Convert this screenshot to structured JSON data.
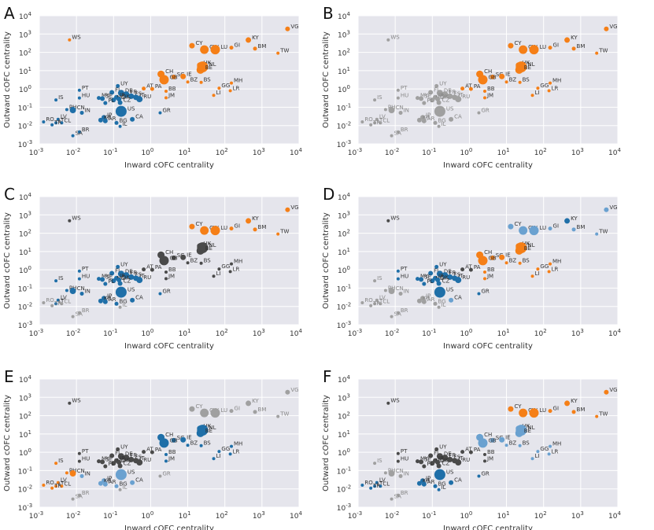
{
  "colors": {
    "orange": "#f57f17",
    "blue": "#1f6fa8",
    "light_blue": "#6aa1d0",
    "dark_gray": "#4a4a4a",
    "light_gray": "#a0a0a0"
  },
  "chart_data": {
    "type": "scatter",
    "xlabel": "Inward cOFC centrality",
    "ylabel": "Outward cOFC centrality",
    "xscale": "log",
    "yscale": "log",
    "xlim": [
      0.001,
      10000
    ],
    "ylim": [
      0.001,
      10000
    ],
    "x_ticks": [
      {
        "base": "10",
        "exp": "-3"
      },
      {
        "base": "10",
        "exp": "-2"
      },
      {
        "base": "10",
        "exp": "-1"
      },
      {
        "base": "10",
        "exp": "0"
      },
      {
        "base": "10",
        "exp": "1"
      },
      {
        "base": "10",
        "exp": "2"
      },
      {
        "base": "10",
        "exp": "3"
      },
      {
        "base": "10",
        "exp": "4"
      }
    ],
    "y_ticks": [
      {
        "base": "10",
        "exp": "-3"
      },
      {
        "base": "10",
        "exp": "-2"
      },
      {
        "base": "10",
        "exp": "-1"
      },
      {
        "base": "10",
        "exp": "0"
      },
      {
        "base": "10",
        "exp": "1"
      },
      {
        "base": "10",
        "exp": "2"
      },
      {
        "base": "10",
        "exp": "3"
      },
      {
        "base": "10",
        "exp": "4"
      }
    ],
    "points": [
      {
        "id": "VG",
        "x": 4900,
        "y": 1900,
        "s": 3.0
      },
      {
        "id": "KY",
        "x": 430,
        "y": 470,
        "s": 3.5
      },
      {
        "id": "CY",
        "x": 13,
        "y": 230,
        "s": 3.5
      },
      {
        "id": "GI",
        "x": 150,
        "y": 180,
        "s": 2.5
      },
      {
        "id": "BM",
        "x": 650,
        "y": 160,
        "s": 2.5
      },
      {
        "id": "CW",
        "x": 28,
        "y": 140,
        "s": 5.5
      },
      {
        "id": "LU",
        "x": 55,
        "y": 140,
        "s": 6.0
      },
      {
        "id": "TW",
        "x": 2700,
        "y": 90,
        "s": 2.0
      },
      {
        "id": "WS",
        "x": 0.0065,
        "y": 480,
        "s": 2.0
      },
      {
        "id": "CH",
        "x": 1.9,
        "y": 6.5,
        "s": 4.5
      },
      {
        "id": "SG",
        "x": 4.2,
        "y": 4.5,
        "s": 3.0
      },
      {
        "id": "IE",
        "x": 7.5,
        "y": 4.8,
        "s": 3.5
      },
      {
        "id": "GB",
        "x": 2.3,
        "y": 3.2,
        "s": 6.0
      },
      {
        "id": "HK",
        "x": 21,
        "y": 20,
        "s": 3.5
      },
      {
        "id": "NL",
        "x": 25,
        "y": 16,
        "s": 7.0
      },
      {
        "id": "BE",
        "x": 22,
        "y": 11,
        "s": 5.0
      },
      {
        "id": "BZ",
        "x": 10,
        "y": 2.4,
        "s": 2.0
      },
      {
        "id": "BS",
        "x": 23,
        "y": 2.3,
        "s": 2.0
      },
      {
        "id": "MH",
        "x": 150,
        "y": 2.1,
        "s": 2.0
      },
      {
        "id": "GG",
        "x": 70,
        "y": 1.1,
        "s": 2.0
      },
      {
        "id": "LR",
        "x": 140,
        "y": 0.8,
        "s": 2.0
      },
      {
        "id": "LI",
        "x": 50,
        "y": 0.45,
        "s": 2.0
      },
      {
        "id": "AT",
        "x": 0.65,
        "y": 1.05,
        "s": 2.5
      },
      {
        "id": "PA",
        "x": 1.1,
        "y": 1.0,
        "s": 2.5
      },
      {
        "id": "BB",
        "x": 2.6,
        "y": 0.75,
        "s": 2.0
      },
      {
        "id": "JM",
        "x": 2.6,
        "y": 0.33,
        "s": 2.0
      },
      {
        "id": "UY",
        "x": 0.13,
        "y": 1.45,
        "s": 2.5
      },
      {
        "id": "FI",
        "x": 0.09,
        "y": 0.65,
        "s": 3.0
      },
      {
        "id": "DE",
        "x": 0.16,
        "y": 0.6,
        "s": 4.0
      },
      {
        "id": "FR",
        "x": 0.22,
        "y": 0.5,
        "s": 4.0
      },
      {
        "id": "ES",
        "x": 0.3,
        "y": 0.4,
        "s": 3.5
      },
      {
        "id": "IT",
        "x": 0.4,
        "y": 0.35,
        "s": 3.5
      },
      {
        "id": "JP",
        "x": 0.12,
        "y": 0.35,
        "s": 3.0
      },
      {
        "id": "RU",
        "x": 0.5,
        "y": 0.28,
        "s": 4.0
      },
      {
        "id": "MY",
        "x": 0.04,
        "y": 0.32,
        "s": 2.5
      },
      {
        "id": "SE",
        "x": 0.05,
        "y": 0.3,
        "s": 3.0
      },
      {
        "id": "NO",
        "x": 0.1,
        "y": 0.25,
        "s": 3.0
      },
      {
        "id": "DK",
        "x": 0.14,
        "y": 0.28,
        "s": 3.0
      },
      {
        "id": "PL",
        "x": 0.06,
        "y": 0.17,
        "s": 2.5
      },
      {
        "id": "PT",
        "x": 0.012,
        "y": 0.85,
        "s": 2.0
      },
      {
        "id": "HU",
        "x": 0.012,
        "y": 0.32,
        "s": 2.0
      },
      {
        "id": "CZ",
        "x": 0.15,
        "y": 0.18,
        "s": 3.0
      },
      {
        "id": "US",
        "x": 0.16,
        "y": 0.06,
        "s": 7.0
      },
      {
        "id": "IS",
        "x": 0.0028,
        "y": 0.25,
        "s": 2.0
      },
      {
        "id": "PH",
        "x": 0.0055,
        "y": 0.075,
        "s": 2.0
      },
      {
        "id": "CN",
        "x": 0.008,
        "y": 0.07,
        "s": 4.0
      },
      {
        "id": "IN",
        "x": 0.014,
        "y": 0.05,
        "s": 2.5
      },
      {
        "id": "CA",
        "x": 0.32,
        "y": 0.022,
        "s": 3.0
      },
      {
        "id": "LV",
        "x": 0.0032,
        "y": 0.022,
        "s": 2.0
      },
      {
        "id": "RO",
        "x": 0.0013,
        "y": 0.016,
        "s": 2.0
      },
      {
        "id": "LT",
        "x": 0.0028,
        "y": 0.014,
        "s": 2.0
      },
      {
        "id": "CL",
        "x": 0.004,
        "y": 0.014,
        "s": 2.0
      },
      {
        "id": "TR",
        "x": 0.0022,
        "y": 0.011,
        "s": 2.0
      },
      {
        "id": "JP2",
        "x": 0.055,
        "y": 0.028,
        "s": 3.0
      },
      {
        "id": "KR",
        "x": 0.045,
        "y": 0.02,
        "s": 3.0
      },
      {
        "id": "AR",
        "x": 0.06,
        "y": 0.018,
        "s": 3.0
      },
      {
        "id": "BG",
        "x": 0.12,
        "y": 0.014,
        "s": 2.5
      },
      {
        "id": "IL",
        "x": 0.15,
        "y": 0.009,
        "s": 2.0
      },
      {
        "id": "BR",
        "x": 0.012,
        "y": 0.0045,
        "s": 2.0
      },
      {
        "id": "SA",
        "x": 0.008,
        "y": 0.0028,
        "s": 2.0
      },
      {
        "id": "GR",
        "x": 1.8,
        "y": 0.05,
        "s": 2.0
      }
    ],
    "panels": [
      {
        "letter": "A",
        "default_color": "blue",
        "color_map": {
          "VG": "orange",
          "KY": "orange",
          "CY": "orange",
          "GI": "orange",
          "BM": "orange",
          "CW": "orange",
          "LU": "orange",
          "TW": "orange",
          "WS": "orange",
          "CH": "orange",
          "SG": "orange",
          "IE": "orange",
          "GB": "orange",
          "HK": "orange",
          "NL": "orange",
          "BE": "orange",
          "BZ": "orange",
          "BS": "orange",
          "MH": "orange",
          "GG": "orange",
          "LR": "orange",
          "LI": "orange",
          "AT": "orange",
          "PA": "orange",
          "BB": "orange",
          "JM": "orange"
        }
      },
      {
        "letter": "B",
        "default_color": "light_gray",
        "color_map": {
          "VG": "orange",
          "KY": "orange",
          "CY": "orange",
          "GI": "orange",
          "BM": "orange",
          "CW": "orange",
          "LU": "orange",
          "TW": "orange",
          "CH": "orange",
          "SG": "orange",
          "IE": "orange",
          "GB": "orange",
          "HK": "orange",
          "NL": "orange",
          "BE": "orange",
          "BZ": "orange",
          "BS": "orange",
          "MH": "orange",
          "GG": "orange",
          "LR": "orange",
          "LI": "orange",
          "AT": "orange",
          "PA": "orange",
          "BB": "orange",
          "JM": "orange",
          "US": "light_gray",
          "GR": "light_gray"
        }
      },
      {
        "letter": "C",
        "default_color": "blue",
        "color_map": {
          "VG": "orange",
          "KY": "orange",
          "CY": "orange",
          "GI": "orange",
          "BM": "orange",
          "CW": "orange",
          "LU": "orange",
          "TW": "orange",
          "WS": "dark_gray",
          "CH": "dark_gray",
          "SG": "dark_gray",
          "IE": "dark_gray",
          "GB": "dark_gray",
          "HK": "dark_gray",
          "NL": "dark_gray",
          "BE": "dark_gray",
          "BZ": "dark_gray",
          "BS": "dark_gray",
          "MH": "dark_gray",
          "GG": "dark_gray",
          "LR": "dark_gray",
          "LI": "dark_gray",
          "AT": "dark_gray",
          "PA": "dark_gray",
          "BB": "dark_gray",
          "JM": "dark_gray",
          "RO": "light_gray",
          "TR": "light_gray",
          "CL": "light_gray",
          "BR": "light_gray",
          "SA": "light_gray",
          "IL": "light_gray",
          "GR": "blue"
        }
      },
      {
        "letter": "D",
        "default_color": "blue",
        "color_map": {
          "VG": "light_blue",
          "KY": "blue",
          "CY": "light_blue",
          "GI": "light_blue",
          "BM": "light_blue",
          "CW": "light_blue",
          "LU": "light_blue",
          "TW": "light_blue",
          "WS": "dark_gray",
          "CH": "orange",
          "SG": "orange",
          "IE": "orange",
          "GB": "orange",
          "HK": "orange",
          "NL": "orange",
          "BE": "orange",
          "BZ": "orange",
          "BS": "orange",
          "MH": "orange",
          "GG": "orange",
          "LR": "orange",
          "LI": "orange",
          "AT": "dark_gray",
          "PA": "dark_gray",
          "BB": "orange",
          "JM": "orange",
          "IS": "light_gray",
          "PH": "light_gray",
          "CN": "light_gray",
          "IN": "light_gray",
          "RO": "light_gray",
          "TR": "light_gray",
          "CL": "light_gray",
          "LT": "light_gray",
          "LV": "light_gray",
          "BR": "light_gray",
          "SA": "light_gray",
          "IL": "light_gray",
          "JP2": "light_gray",
          "KR": "light_gray",
          "AR": "light_gray",
          "BG": "light_gray",
          "US": "blue",
          "CA": "light_blue"
        }
      },
      {
        "letter": "E",
        "default_color": "dark_gray",
        "color_map": {
          "VG": "light_gray",
          "KY": "light_gray",
          "CY": "light_gray",
          "GI": "light_gray",
          "BM": "light_gray",
          "CW": "light_gray",
          "LU": "light_gray",
          "TW": "light_gray",
          "CH": "blue",
          "SG": "blue",
          "IE": "blue",
          "GB": "blue",
          "HK": "blue",
          "NL": "blue",
          "BE": "blue",
          "BZ": "blue",
          "BS": "blue",
          "MH": "blue",
          "GG": "blue",
          "LR": "blue",
          "LI": "blue",
          "BB": "blue",
          "JM": "blue",
          "IS": "orange",
          "PH": "orange",
          "CN": "orange",
          "IN": "light_blue",
          "RO": "orange",
          "TR": "orange",
          "CL": "orange",
          "LT": "orange",
          "LV": "orange",
          "BR": "light_gray",
          "SA": "light_gray",
          "IL": "light_gray",
          "JP2": "light_blue",
          "KR": "light_blue",
          "AR": "light_blue",
          "BG": "light_blue",
          "US": "light_blue",
          "CA": "light_blue",
          "GR": "light_gray"
        }
      },
      {
        "letter": "F",
        "default_color": "dark_gray",
        "color_map": {
          "VG": "orange",
          "KY": "orange",
          "CY": "orange",
          "GI": "orange",
          "BM": "orange",
          "CW": "orange",
          "LU": "orange",
          "TW": "orange",
          "WS": "dark_gray",
          "CH": "light_blue",
          "SG": "light_blue",
          "IE": "light_blue",
          "GB": "light_blue",
          "HK": "light_blue",
          "NL": "light_blue",
          "BE": "light_blue",
          "BZ": "light_blue",
          "BS": "light_blue",
          "MH": "light_blue",
          "GG": "light_blue",
          "LR": "light_blue",
          "LI": "light_blue",
          "AT": "dark_gray",
          "PA": "dark_gray",
          "BB": "dark_gray",
          "JM": "dark_gray",
          "IS": "light_gray",
          "PH": "light_gray",
          "CN": "light_gray",
          "IN": "light_gray",
          "RO": "blue",
          "TR": "blue",
          "CL": "blue",
          "LT": "blue",
          "LV": "blue",
          "BR": "light_gray",
          "SA": "light_gray",
          "IL": "blue",
          "JP2": "blue",
          "KR": "blue",
          "AR": "blue",
          "BG": "blue",
          "US": "blue",
          "CA": "blue",
          "GR": "blue"
        }
      }
    ]
  }
}
